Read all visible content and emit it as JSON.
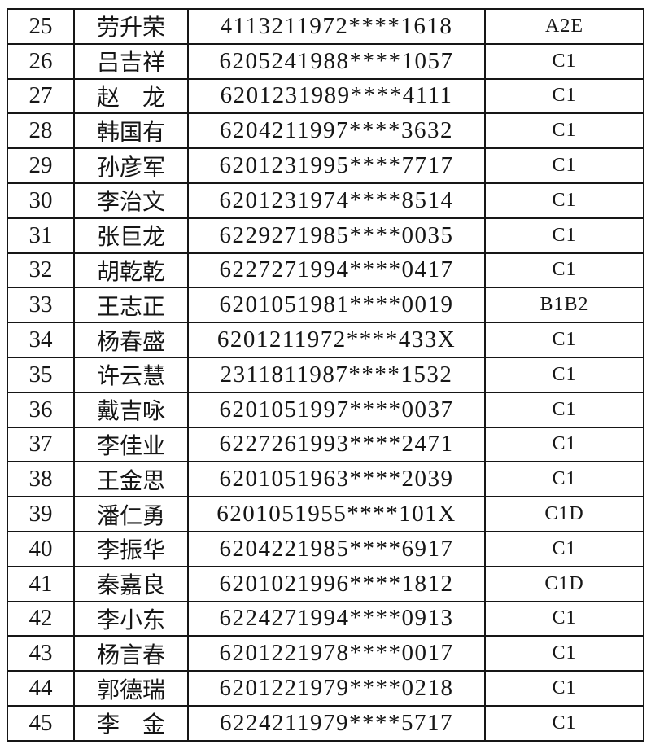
{
  "table": {
    "rows": [
      {
        "no": "25",
        "name": "劳升荣",
        "id": "4113211972****1618",
        "license": "A2E"
      },
      {
        "no": "26",
        "name": "吕吉祥",
        "id": "6205241988****1057",
        "license": "C1"
      },
      {
        "no": "27",
        "name": "赵　龙",
        "id": "6201231989****4111",
        "license": "C1"
      },
      {
        "no": "28",
        "name": "韩国有",
        "id": "6204211997****3632",
        "license": "C1"
      },
      {
        "no": "29",
        "name": "孙彦军",
        "id": "6201231995****7717",
        "license": "C1"
      },
      {
        "no": "30",
        "name": "李治文",
        "id": "6201231974****8514",
        "license": "C1"
      },
      {
        "no": "31",
        "name": "张巨龙",
        "id": "6229271985****0035",
        "license": "C1"
      },
      {
        "no": "32",
        "name": "胡乾乾",
        "id": "6227271994****0417",
        "license": "C1"
      },
      {
        "no": "33",
        "name": "王志正",
        "id": "6201051981****0019",
        "license": "B1B2"
      },
      {
        "no": "34",
        "name": "杨春盛",
        "id": "6201211972****433X",
        "license": "C1"
      },
      {
        "no": "35",
        "name": "许云慧",
        "id": "2311811987****1532",
        "license": "C1"
      },
      {
        "no": "36",
        "name": "戴吉咏",
        "id": "6201051997****0037",
        "license": "C1"
      },
      {
        "no": "37",
        "name": "李佳业",
        "id": "6227261993****2471",
        "license": "C1"
      },
      {
        "no": "38",
        "name": "王金思",
        "id": "6201051963****2039",
        "license": "C1"
      },
      {
        "no": "39",
        "name": "潘仁勇",
        "id": "6201051955****101X",
        "license": "C1D"
      },
      {
        "no": "40",
        "name": "李振华",
        "id": "6204221985****6917",
        "license": "C1"
      },
      {
        "no": "41",
        "name": "秦嘉良",
        "id": "6201021996****1812",
        "license": "C1D"
      },
      {
        "no": "42",
        "name": "李小东",
        "id": "6224271994****0913",
        "license": "C1"
      },
      {
        "no": "43",
        "name": "杨言春",
        "id": "6201221978****0017",
        "license": "C1"
      },
      {
        "no": "44",
        "name": "郭德瑞",
        "id": "6201221979****0218",
        "license": "C1"
      },
      {
        "no": "45",
        "name": "李　金",
        "id": "6224211979****5717",
        "license": "C1"
      }
    ]
  }
}
